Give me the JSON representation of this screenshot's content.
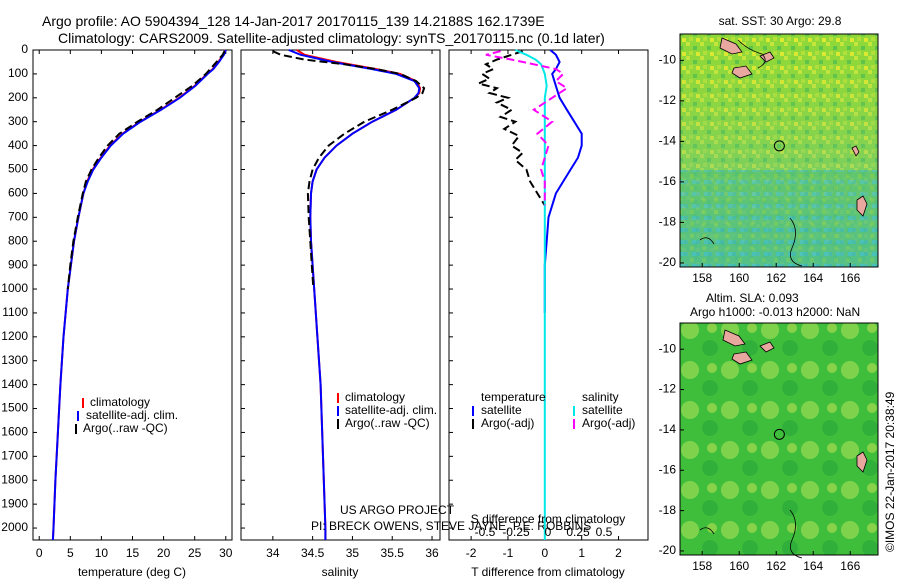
{
  "header": {
    "line1": "Argo profile: AO 5904394_128 14-Jan-2017 20170115_139 14.2188S 162.1739E",
    "line2": "Climatology: CARS2009. Satellite-adjusted climatology: synTS_20170115.nc (0.1d later)"
  },
  "footer": {
    "project": "US ARGO PROJECT",
    "pi": "PI: BRECK OWENS, STEVE JAYNE, P.E. ROBBINS",
    "imos": "©IMOS 22-Jan-2017 20:38:49"
  },
  "colors": {
    "climatology": "#ff0000",
    "satellite": "#0000ff",
    "argo": "#000000",
    "sal_satellite": "#00e8e8",
    "sal_argo": "#ff00ff"
  },
  "legend_profile": {
    "climatology": "climatology",
    "satellite": "satellite-adj. clim.",
    "argo": "Argo(..raw -QC)"
  },
  "legend_diff": {
    "temperature": "temperature",
    "salinity": "salinity",
    "satellite": "satellite",
    "argo": "Argo(-adj)"
  },
  "maps": {
    "sst_title": "sat. SST: 30 Argo: 29.8",
    "sla_title1": "Altim. SLA: 0.093",
    "sla_title2": "Argo h1000: -0.013 h2000: NaN",
    "x_ticks": [
      "158",
      "160",
      "162",
      "164",
      "166"
    ],
    "y_ticks": [
      "-10",
      "-12",
      "-14",
      "-16",
      "-18",
      "-20"
    ],
    "x_range": [
      156.8,
      167.5
    ],
    "y_range": [
      -20.2,
      -8.7
    ],
    "float_position": [
      162.17,
      -14.22
    ]
  },
  "chart_data": [
    {
      "type": "line",
      "xlabel": "temperature (deg C)",
      "ylabel": "",
      "xlim": [
        -1,
        31
      ],
      "ylim": [
        2050,
        0
      ],
      "x_ticks": [
        0,
        5,
        10,
        15,
        20,
        25,
        30
      ],
      "y_ticks": [
        0,
        100,
        200,
        300,
        400,
        500,
        600,
        700,
        800,
        900,
        1000,
        1100,
        1200,
        1300,
        1400,
        1500,
        1600,
        1700,
        1800,
        1900,
        2000
      ],
      "series": [
        {
          "name": "climatology",
          "color": "#ff0000",
          "depth": [
            0,
            20,
            50,
            80,
            100,
            150,
            200,
            250,
            300,
            350,
            400,
            450,
            500,
            550,
            600,
            700,
            800,
            900,
            1000,
            1200,
            1400,
            1600,
            1800,
            2000,
            2050
          ],
          "values": [
            29.9,
            29.6,
            28.8,
            27.9,
            27.0,
            25.0,
            22.5,
            19.5,
            16.2,
            13.4,
            11.4,
            9.9,
            8.6,
            7.7,
            7.1,
            6.3,
            5.6,
            5.1,
            4.6,
            3.9,
            3.4,
            3.0,
            2.6,
            2.3,
            2.2
          ]
        },
        {
          "name": "satellite-adj. clim.",
          "color": "#0000ff",
          "depth": [
            0,
            20,
            50,
            80,
            100,
            150,
            200,
            250,
            300,
            350,
            400,
            450,
            500,
            550,
            600,
            700,
            800,
            900,
            1000,
            1200,
            1400,
            1600,
            1800,
            2000,
            2050
          ],
          "values": [
            30.0,
            29.7,
            28.9,
            28.0,
            27.1,
            25.1,
            22.6,
            19.6,
            16.3,
            13.5,
            11.5,
            10.0,
            8.7,
            7.8,
            7.1,
            6.3,
            5.6,
            5.1,
            4.6,
            3.9,
            3.4,
            3.0,
            2.6,
            2.3,
            2.2
          ]
        },
        {
          "name": "Argo(..raw -QC)",
          "color": "#000000",
          "dash": true,
          "depth": [
            5,
            20,
            50,
            80,
            100,
            150,
            200,
            250,
            300,
            350,
            400,
            450,
            500,
            550,
            600,
            700,
            800,
            900,
            1000
          ],
          "values": [
            29.8,
            29.5,
            28.5,
            27.5,
            26.8,
            24.6,
            21.8,
            19.0,
            15.8,
            12.9,
            11.0,
            9.6,
            8.4,
            7.5,
            7.0,
            6.2,
            5.5,
            5.0,
            4.6
          ]
        }
      ]
    },
    {
      "type": "line",
      "xlabel": "salinity",
      "ylabel": "",
      "xlim": [
        33.6,
        36.1
      ],
      "ylim": [
        2050,
        0
      ],
      "x_ticks": [
        34,
        34.5,
        35,
        35.5,
        36
      ],
      "series": [
        {
          "name": "climatology",
          "color": "#ff0000",
          "depth": [
            0,
            20,
            50,
            80,
            100,
            130,
            160,
            180,
            200,
            250,
            300,
            350,
            400,
            450,
            500,
            550,
            600,
            700,
            800,
            900,
            1000,
            1200,
            1400,
            1600,
            1800,
            2000,
            2050
          ],
          "values": [
            34.3,
            34.4,
            34.8,
            35.3,
            35.6,
            35.8,
            35.85,
            35.84,
            35.78,
            35.55,
            35.25,
            35.0,
            34.8,
            34.65,
            34.55,
            34.5,
            34.48,
            34.47,
            34.48,
            34.5,
            34.52,
            34.56,
            34.6,
            34.62,
            34.64,
            34.66,
            34.66
          ]
        },
        {
          "name": "satellite-adj. clim.",
          "color": "#0000ff",
          "depth": [
            0,
            20,
            50,
            80,
            100,
            130,
            160,
            180,
            200,
            250,
            300,
            350,
            400,
            450,
            500,
            550,
            600,
            700,
            800,
            900,
            1000,
            1200,
            1400,
            1600,
            1800,
            2000,
            2050
          ],
          "values": [
            34.2,
            34.35,
            34.75,
            35.25,
            35.55,
            35.78,
            35.84,
            35.83,
            35.78,
            35.55,
            35.25,
            35.0,
            34.8,
            34.65,
            34.55,
            34.5,
            34.48,
            34.47,
            34.48,
            34.5,
            34.52,
            34.56,
            34.6,
            34.62,
            34.64,
            34.66,
            34.66
          ]
        },
        {
          "name": "Argo(..raw -QC)",
          "color": "#000000",
          "dash": true,
          "depth": [
            5,
            20,
            40,
            60,
            80,
            100,
            130,
            160,
            180,
            200,
            250,
            300,
            350,
            400,
            450,
            500,
            550,
            600,
            700,
            800,
            900,
            1000
          ],
          "values": [
            34.0,
            34.1,
            34.4,
            34.9,
            35.3,
            35.6,
            35.8,
            35.9,
            35.88,
            35.8,
            35.5,
            35.15,
            34.9,
            34.7,
            34.58,
            34.5,
            34.46,
            34.44,
            34.45,
            34.47,
            34.49,
            34.51
          ]
        }
      ]
    },
    {
      "type": "line",
      "xlabel": "T difference from climatology",
      "title": "S difference from climatology",
      "xlim": [
        -2.6,
        2.8
      ],
      "ylim": [
        2050,
        0
      ],
      "x_ticks": [
        -2,
        -1,
        0,
        1,
        2
      ],
      "s_ticks": [
        "-0.5",
        "-0.25",
        "0",
        "0.25",
        "0.5"
      ],
      "series": [
        {
          "name": "temperature satellite",
          "color": "#0000ff",
          "depth": [
            0,
            20,
            50,
            80,
            100,
            150,
            200,
            250,
            300,
            350,
            400,
            450,
            500,
            550,
            600,
            700,
            800,
            900,
            1000,
            1100
          ],
          "values": [
            0.15,
            0.3,
            0.4,
            0.3,
            0.2,
            0.3,
            0.4,
            0.6,
            0.8,
            1.0,
            1.0,
            0.9,
            0.7,
            0.5,
            0.3,
            0.1,
            0.05,
            0.0,
            0.0,
            0.0
          ]
        },
        {
          "name": "temperature Argo(-adj)",
          "color": "#000000",
          "dash": true,
          "depth": [
            5,
            20,
            40,
            60,
            80,
            100,
            120,
            140,
            160,
            180,
            200,
            220,
            250,
            280,
            300,
            330,
            360,
            400,
            430,
            460,
            500,
            550,
            600,
            650
          ],
          "values": [
            -0.6,
            -0.9,
            -1.3,
            -1.6,
            -1.4,
            -1.7,
            -1.5,
            -1.8,
            -1.3,
            -1.5,
            -1.0,
            -1.3,
            -0.9,
            -1.2,
            -0.8,
            -1.1,
            -0.7,
            -0.9,
            -0.6,
            -0.8,
            -0.5,
            -0.4,
            -0.2,
            0.0
          ]
        },
        {
          "name": "salinity satellite",
          "color": "#00e8e8",
          "depth": [
            0,
            20,
            40,
            60,
            80,
            100,
            150,
            200,
            300,
            400,
            500,
            700,
            1000,
            1500,
            2050
          ],
          "values": [
            -0.8,
            -0.5,
            -0.25,
            -0.1,
            -0.05,
            0.0,
            0.05,
            0.0,
            0.0,
            0.0,
            0.0,
            0.0,
            0.0,
            0.0,
            0.0
          ]
        },
        {
          "name": "salinity Argo(-adj)",
          "color": "#ff00ff",
          "dash": true,
          "depth": [
            5,
            20,
            40,
            60,
            80,
            100,
            130,
            160,
            200,
            250,
            300,
            350,
            400,
            450,
            500,
            550,
            600,
            650
          ],
          "values": [
            -1.2,
            -1.6,
            -0.9,
            -0.3,
            0.3,
            0.5,
            0.3,
            0.6,
            0.2,
            -0.3,
            0.2,
            -0.2,
            0.1,
            0.0,
            -0.1,
            0.0,
            0.0,
            0.0
          ]
        }
      ]
    }
  ]
}
